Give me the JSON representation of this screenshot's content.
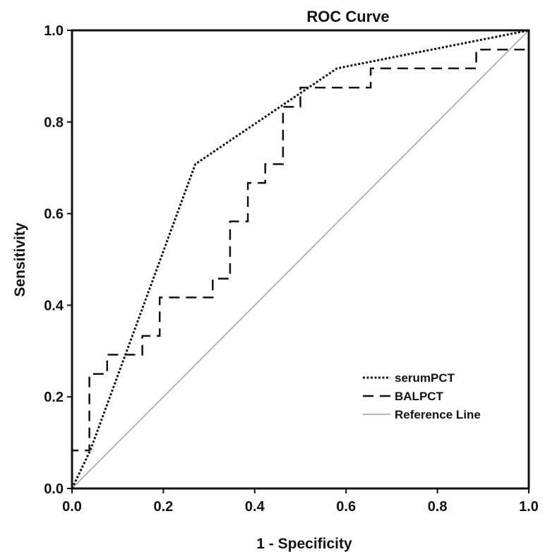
{
  "chart_data": {
    "type": "line",
    "title": "ROC Curve",
    "xlabel": "1 - Specificity",
    "ylabel": "Sensitivity",
    "xlim": [
      0.0,
      1.0
    ],
    "ylim": [
      0.0,
      1.0
    ],
    "xticks": [
      "0.0",
      "0.2",
      "0.4",
      "0.6",
      "0.8",
      "1.0"
    ],
    "yticks": [
      "0.0",
      "0.2",
      "0.4",
      "0.6",
      "0.8",
      "1.0"
    ],
    "grid": false,
    "legend_position": "bottom-right",
    "series": [
      {
        "name": "serumPCT",
        "style": "dotted",
        "color": "#111111",
        "x": [
          0.0,
          0.04,
          0.27,
          0.58,
          1.0
        ],
        "y": [
          0.0,
          0.083,
          0.708,
          0.917,
          1.0
        ]
      },
      {
        "name": "BALPCT",
        "style": "dashed",
        "color": "#111111",
        "x": [
          0.0,
          0.0,
          0.038,
          0.038,
          0.077,
          0.077,
          0.154,
          0.154,
          0.192,
          0.192,
          0.308,
          0.308,
          0.346,
          0.346,
          0.385,
          0.385,
          0.423,
          0.423,
          0.462,
          0.462,
          0.5,
          0.5,
          0.654,
          0.654,
          0.885,
          0.885,
          1.0,
          1.0
        ],
        "y": [
          0.0,
          0.083,
          0.083,
          0.25,
          0.25,
          0.292,
          0.292,
          0.333,
          0.333,
          0.417,
          0.417,
          0.458,
          0.458,
          0.583,
          0.583,
          0.667,
          0.667,
          0.708,
          0.708,
          0.833,
          0.833,
          0.875,
          0.875,
          0.917,
          0.917,
          0.958,
          0.958,
          1.0
        ]
      },
      {
        "name": "Reference Line",
        "style": "solid",
        "color": "#a0a0a0",
        "x": [
          0.0,
          1.0
        ],
        "y": [
          0.0,
          1.0
        ]
      }
    ]
  }
}
